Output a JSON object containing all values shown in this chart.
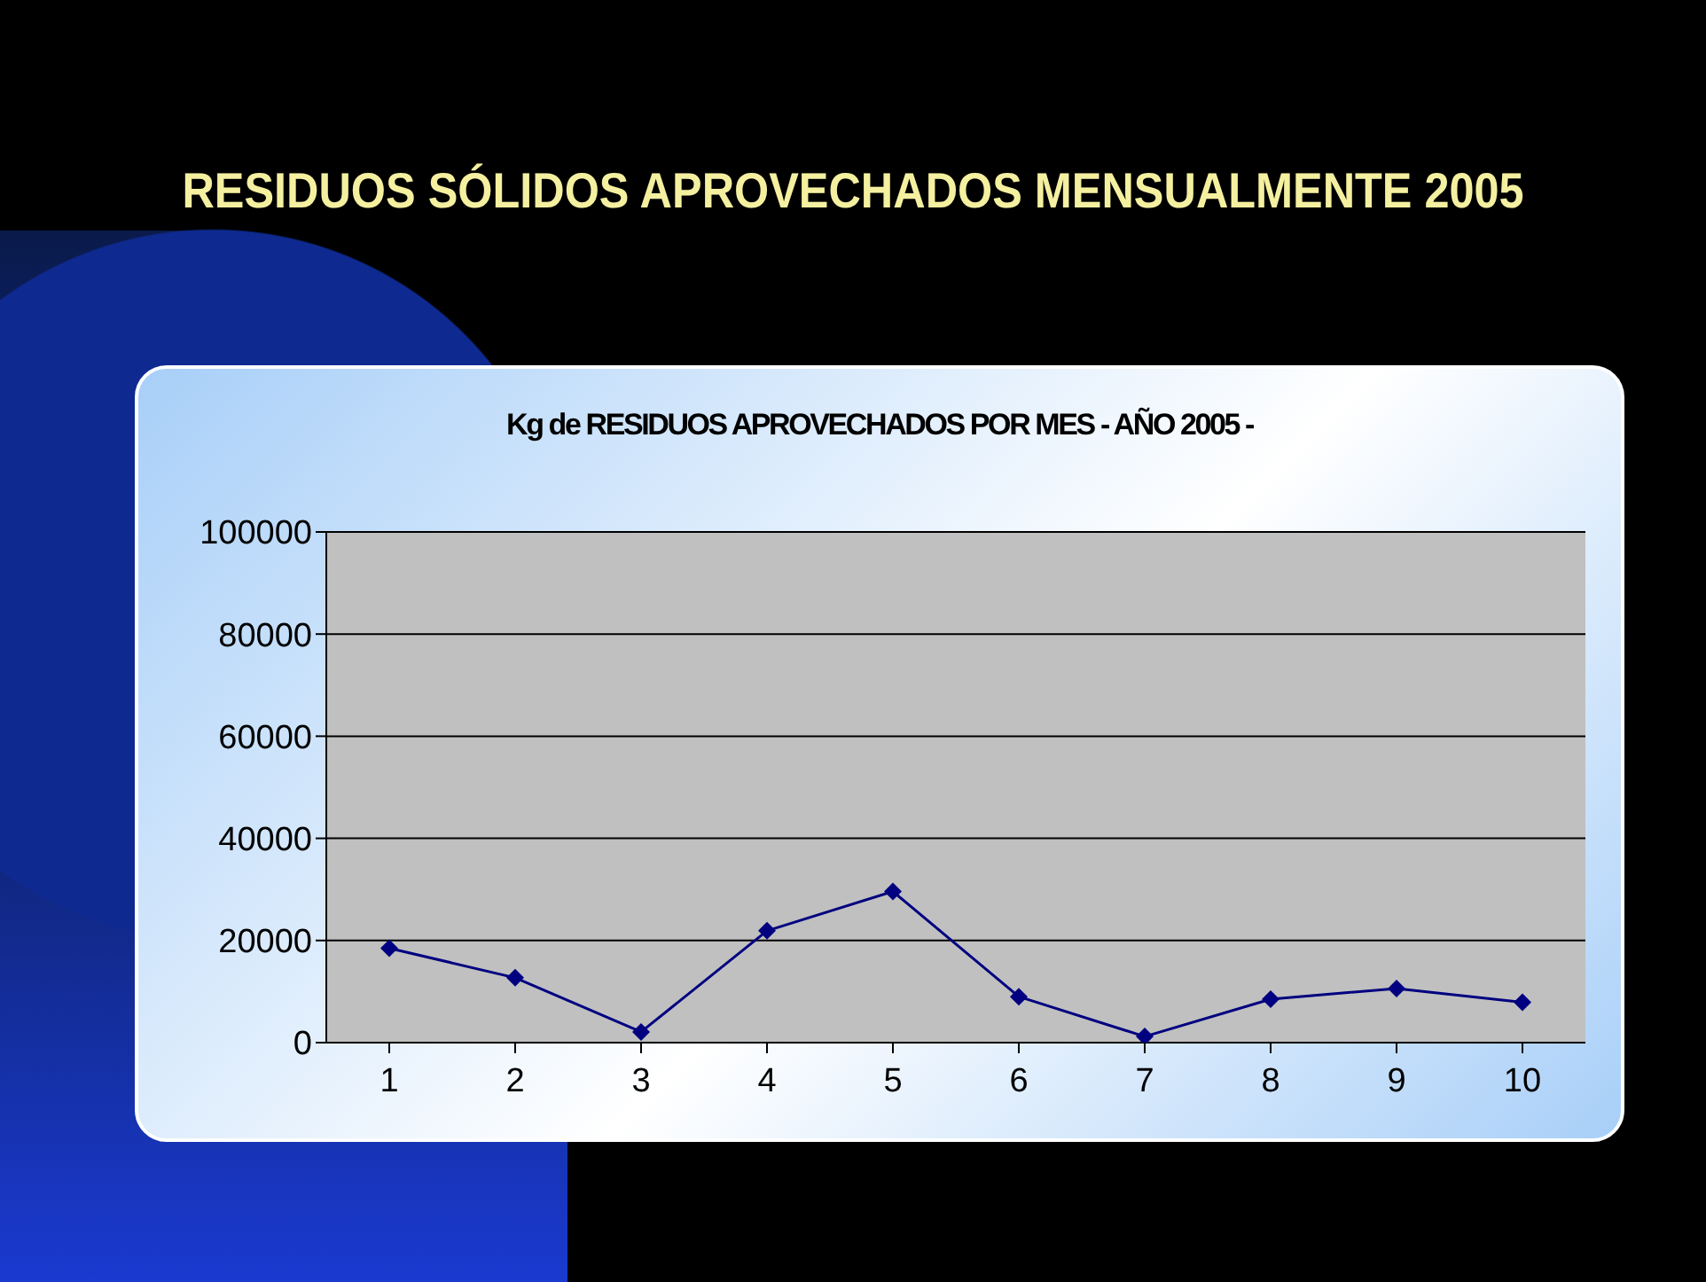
{
  "chart_data": {
    "type": "line",
    "title": "RESIDUOS SÓLIDOS APROVECHADOS MENSUALMENTE  2005",
    "subtitle": "Kg de RESIDUOS APROVECHADOS POR MES - AÑO 2005 -",
    "categories": [
      "1",
      "2",
      "3",
      "4",
      "5",
      "6",
      "7",
      "8",
      "9",
      "10"
    ],
    "series": [
      {
        "color": "#000080",
        "values": [
          18500,
          12700,
          2100,
          21900,
          29600,
          9000,
          1200,
          8500,
          10600,
          7900
        ]
      }
    ],
    "ylim": [
      0,
      100000
    ],
    "yticks": [
      0,
      20000,
      40000,
      60000,
      80000,
      100000
    ],
    "grid": "y",
    "marker": "diamond",
    "line_style": "solid"
  }
}
